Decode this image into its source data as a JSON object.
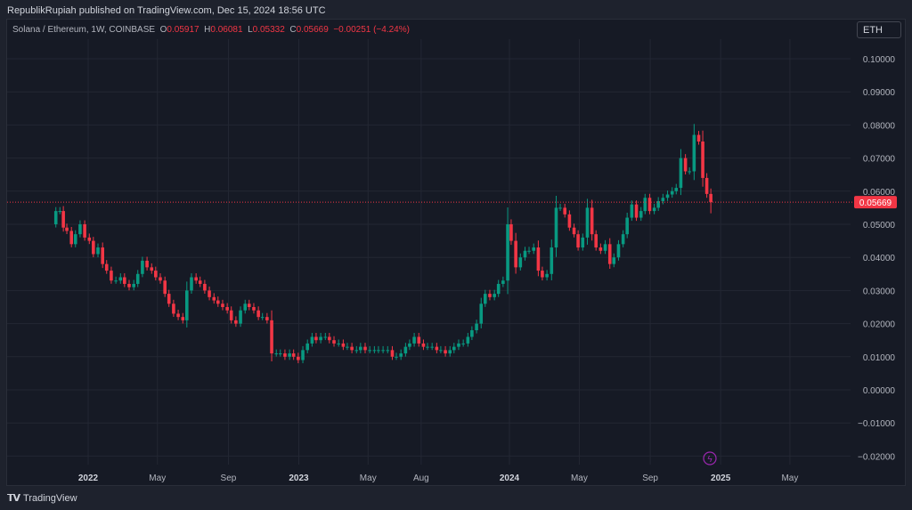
{
  "header": {
    "publisher_line": "RepublikRupiah published on TradingView.com, Dec 15, 2024 18:56 UTC"
  },
  "legend": {
    "symbol": "Solana / Ethereum, 1W, COINBASE",
    "o_label": "O",
    "o": "0.05917",
    "h_label": "H",
    "h": "0.06081",
    "l_label": "L",
    "l": "0.05332",
    "c_label": "C",
    "c": "0.05669",
    "change": "−0.00251 (−4.24%)"
  },
  "currency_button": "ETH",
  "brand": {
    "logo": "TV",
    "name": "TradingView"
  },
  "colors": {
    "up": "#089981",
    "down": "#f23645",
    "grid": "#232733",
    "price_tag": "#f23645",
    "event_icon": "#9c27b0"
  },
  "chart_data": {
    "type": "candlestick",
    "title": "Solana / Ethereum, 1W, COINBASE",
    "ylim": [
      -0.022,
      0.105
    ],
    "y_ticks": [
      "0.10000",
      "0.09000",
      "0.08000",
      "0.07000",
      "0.06000",
      "0.05000",
      "0.04000",
      "0.03000",
      "0.02000",
      "0.01000",
      "0.00000",
      "−0.01000",
      "−0.02000"
    ],
    "y_tick_values": [
      0.1,
      0.09,
      0.08,
      0.07,
      0.06,
      0.05,
      0.04,
      0.03,
      0.02,
      0.01,
      0,
      -0.01,
      -0.02
    ],
    "x_ticks": [
      {
        "label": "2022",
        "date": "2022-01-01",
        "bold": true
      },
      {
        "label": "May",
        "date": "2022-05-01"
      },
      {
        "label": "Sep",
        "date": "2022-09-01"
      },
      {
        "label": "2023",
        "date": "2023-01-01",
        "bold": true
      },
      {
        "label": "May",
        "date": "2023-05-01"
      },
      {
        "label": "Aug",
        "date": "2023-08-01"
      },
      {
        "label": "2024",
        "date": "2024-01-01",
        "bold": true
      },
      {
        "label": "May",
        "date": "2024-05-01"
      },
      {
        "label": "Sep",
        "date": "2024-09-01"
      },
      {
        "label": "2025",
        "date": "2025-01-01",
        "bold": true
      },
      {
        "label": "May",
        "date": "2025-05-01"
      }
    ],
    "last_price": "0.05669",
    "last_price_value": 0.05669,
    "grid": true,
    "first_open": 0.05,
    "dates": [
      "2021-11-06",
      "2021-11-13",
      "2021-11-19",
      "2021-11-25",
      "2021-12-03",
      "2021-12-10",
      "2021-12-18",
      "2021-12-26",
      "2022-01-03",
      "2022-01-10",
      "2022-01-18",
      "2022-01-26",
      "2022-02-02",
      "2022-02-10",
      "2022-02-18",
      "2022-02-26",
      "2022-03-05",
      "2022-03-13",
      "2022-03-21",
      "2022-03-28",
      "2022-04-05",
      "2022-04-13",
      "2022-04-21",
      "2022-04-28",
      "2022-05-06",
      "2022-05-14",
      "2022-05-21",
      "2022-05-29",
      "2022-06-06",
      "2022-06-14",
      "2022-06-21",
      "2022-06-29",
      "2022-07-07",
      "2022-07-14",
      "2022-07-22",
      "2022-07-30",
      "2022-08-07",
      "2022-08-14",
      "2022-08-22",
      "2022-08-30",
      "2022-09-06",
      "2022-09-14",
      "2022-09-22",
      "2022-09-30",
      "2022-10-07",
      "2022-10-15",
      "2022-10-23",
      "2022-10-30",
      "2022-11-07",
      "2022-11-15",
      "2022-11-23",
      "2022-11-30",
      "2022-12-08",
      "2022-12-16",
      "2022-12-23",
      "2022-12-31",
      "2023-01-08",
      "2023-01-16",
      "2023-01-24",
      "2023-01-31",
      "2023-02-08",
      "2023-02-16",
      "2023-02-23",
      "2023-03-03",
      "2023-03-11",
      "2023-03-19",
      "2023-03-26",
      "2023-04-03",
      "2023-04-11",
      "2023-04-18",
      "2023-04-26",
      "2023-05-04",
      "2023-05-12",
      "2023-05-19",
      "2023-05-27",
      "2023-06-04",
      "2023-06-12",
      "2023-06-19",
      "2023-06-27",
      "2023-07-05",
      "2023-07-12",
      "2023-07-20",
      "2023-07-28",
      "2023-08-05",
      "2023-08-12",
      "2023-08-20",
      "2023-08-28",
      "2023-09-04",
      "2023-09-12",
      "2023-09-20",
      "2023-09-27",
      "2023-10-05",
      "2023-10-13",
      "2023-10-21",
      "2023-10-28",
      "2023-11-05",
      "2023-11-13",
      "2023-11-20",
      "2023-11-28",
      "2023-12-06",
      "2023-12-13",
      "2023-12-21",
      "2023-12-29",
      "2024-01-04",
      "2024-01-12",
      "2024-01-20",
      "2024-01-28",
      "2024-02-04",
      "2024-02-12",
      "2024-02-20",
      "2024-02-27",
      "2024-03-06",
      "2024-03-14",
      "2024-03-22",
      "2024-03-29",
      "2024-04-06",
      "2024-04-14",
      "2024-04-22",
      "2024-04-29",
      "2024-05-07",
      "2024-05-15",
      "2024-05-23",
      "2024-05-30",
      "2024-06-07",
      "2024-06-15",
      "2024-06-23",
      "2024-06-30",
      "2024-07-08",
      "2024-07-16",
      "2024-07-23",
      "2024-07-31",
      "2024-08-08",
      "2024-08-16",
      "2024-08-23",
      "2024-08-31",
      "2024-09-08",
      "2024-09-15",
      "2024-09-23",
      "2024-10-01",
      "2024-10-09",
      "2024-10-16",
      "2024-10-24",
      "2024-11-01",
      "2024-11-08",
      "2024-11-16",
      "2024-11-24",
      "2024-12-01",
      "2024-12-08",
      "2024-12-15"
    ],
    "close": [
      0.054,
      0.054,
      0.049,
      0.048,
      0.044,
      0.047,
      0.05,
      0.046,
      0.045,
      0.041,
      0.043,
      0.038,
      0.036,
      0.033,
      0.033,
      0.034,
      0.032,
      0.031,
      0.032,
      0.035,
      0.039,
      0.037,
      0.036,
      0.034,
      0.033,
      0.029,
      0.026,
      0.023,
      0.022,
      0.021,
      0.03,
      0.034,
      0.033,
      0.032,
      0.03,
      0.028,
      0.027,
      0.026,
      0.025,
      0.024,
      0.021,
      0.02,
      0.024,
      0.026,
      0.025,
      0.024,
      0.022,
      0.022,
      0.021,
      0.011,
      0.011,
      0.011,
      0.01,
      0.011,
      0.01,
      0.009,
      0.012,
      0.014,
      0.016,
      0.015,
      0.016,
      0.016,
      0.015,
      0.014,
      0.014,
      0.013,
      0.013,
      0.012,
      0.012,
      0.013,
      0.012,
      0.012,
      0.012,
      0.012,
      0.012,
      0.012,
      0.01,
      0.01,
      0.011,
      0.013,
      0.014,
      0.016,
      0.014,
      0.013,
      0.013,
      0.013,
      0.012,
      0.012,
      0.011,
      0.012,
      0.013,
      0.014,
      0.014,
      0.016,
      0.018,
      0.02,
      0.026,
      0.029,
      0.028,
      0.029,
      0.032,
      0.033,
      0.05,
      0.045,
      0.037,
      0.04,
      0.042,
      0.042,
      0.043,
      0.036,
      0.034,
      0.035,
      0.043,
      0.055,
      0.055,
      0.053,
      0.049,
      0.047,
      0.043,
      0.046,
      0.055,
      0.047,
      0.043,
      0.042,
      0.044,
      0.038,
      0.04,
      0.044,
      0.047,
      0.052,
      0.056,
      0.052,
      0.054,
      0.058,
      0.054,
      0.055,
      0.057,
      0.058,
      0.059,
      0.06,
      0.061,
      0.07,
      0.066,
      0.066,
      0.077,
      0.075,
      0.064,
      0.05917,
      0.05669
    ],
    "last_candle": {
      "open": 0.05917,
      "high": 0.06081,
      "low": 0.05332,
      "close": 0.05669
    }
  }
}
